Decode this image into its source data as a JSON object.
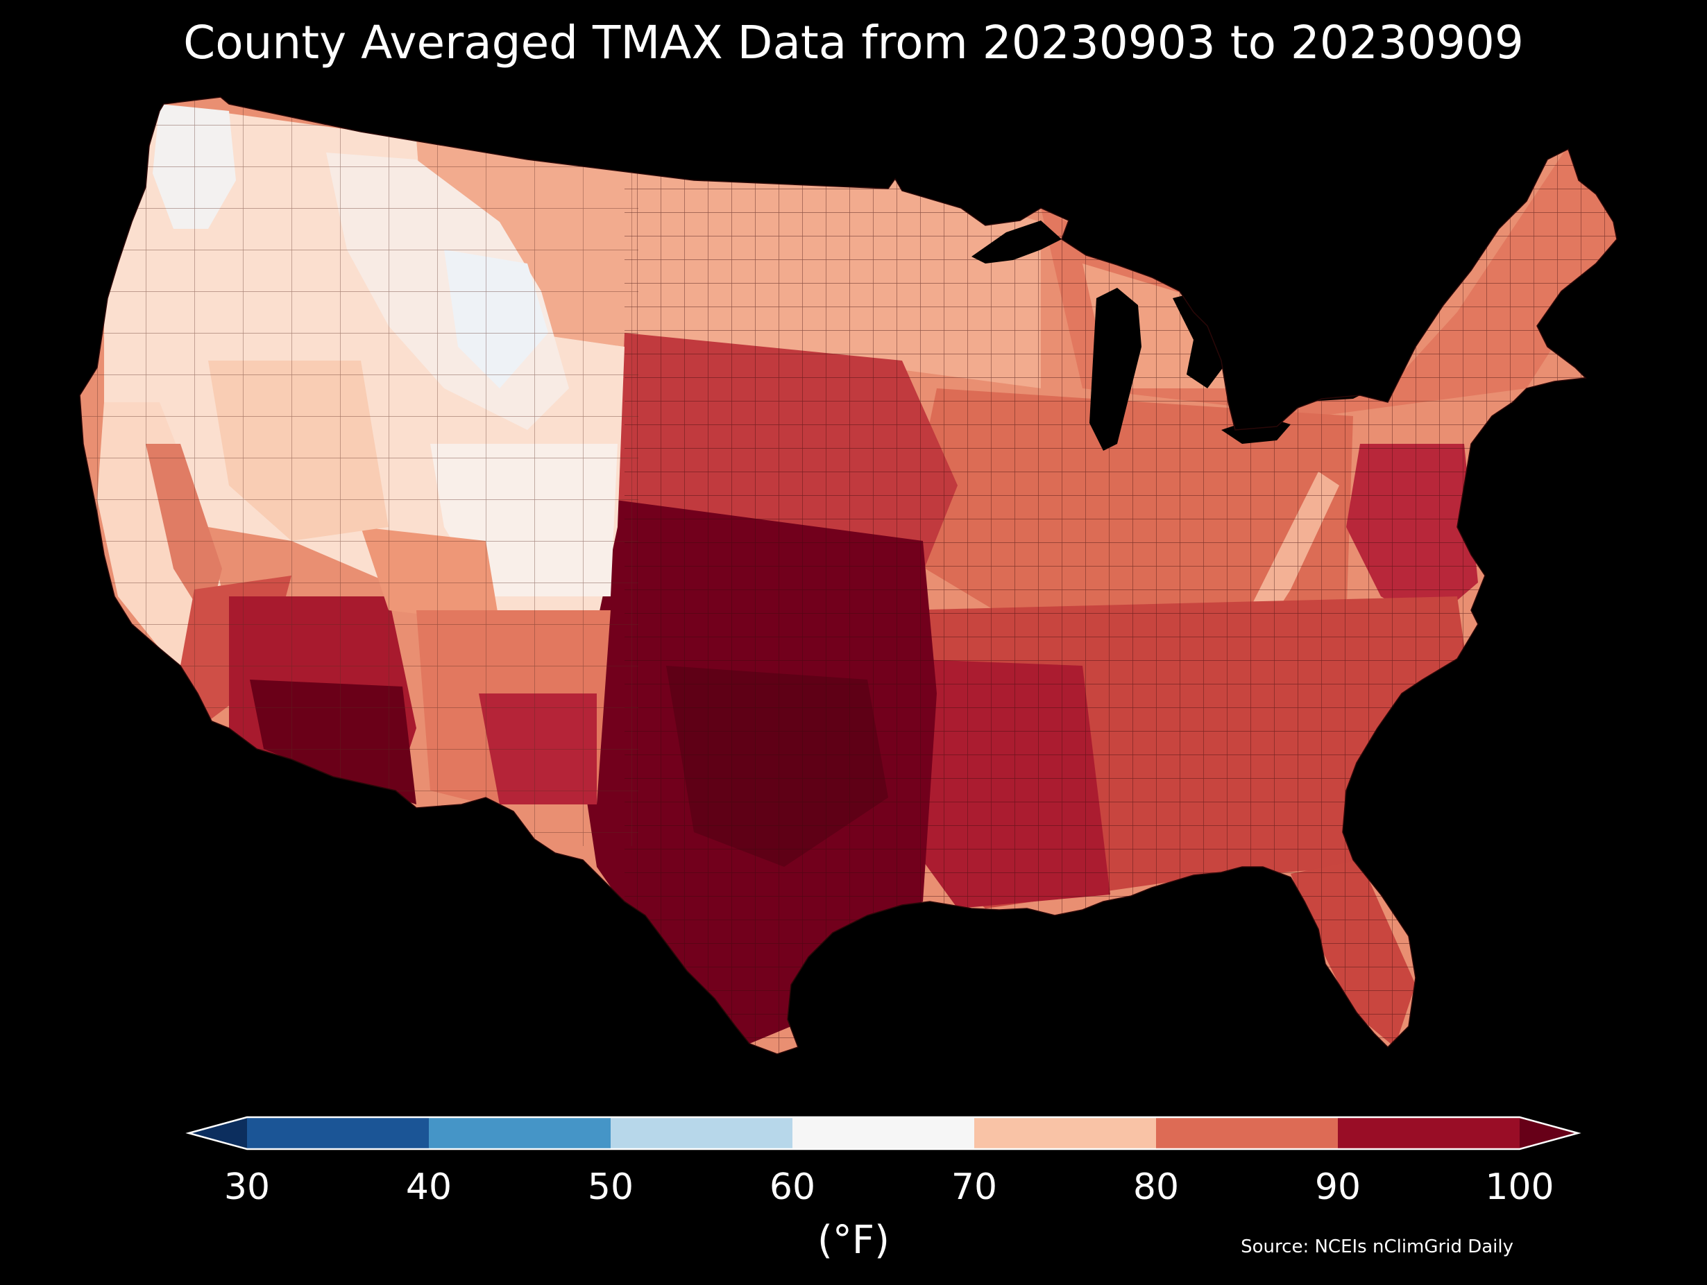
{
  "title": "County Averaged TMAX Data from 20230903 to 20230909",
  "colorbar": {
    "label": "(°F)",
    "ticks": [
      "30",
      "40",
      "50",
      "60",
      "70",
      "80",
      "90",
      "100"
    ],
    "bins": [
      {
        "range": [
          30,
          40
        ],
        "color": "#1b5596"
      },
      {
        "range": [
          40,
          50
        ],
        "color": "#4595c7"
      },
      {
        "range": [
          50,
          60
        ],
        "color": "#b7d7ea"
      },
      {
        "range": [
          60,
          70
        ],
        "color": "#f6f6f6"
      },
      {
        "range": [
          70,
          80
        ],
        "color": "#f9c3a6"
      },
      {
        "range": [
          80,
          90
        ],
        "color": "#dd6b55"
      },
      {
        "range": [
          90,
          100
        ],
        "color": "#990d26"
      }
    ],
    "under_color": "#0c2e5e",
    "over_color": "#670018"
  },
  "source": "Source: NCEIs nClimGrid Daily",
  "map": {
    "region": "Contiguous United States",
    "unit": "°F",
    "regional_tmax": [
      {
        "region": "Pacific Northwest coast / Cascades",
        "tmax": 66,
        "color": "#f3f1f0"
      },
      {
        "region": "Northern Rockies (Idaho / Montana mountains)",
        "tmax": 68,
        "color": "#f8ebe4"
      },
      {
        "region": "Wyoming high country",
        "tmax": 62,
        "color": "#eef2f6"
      },
      {
        "region": "Great Basin / Nevada",
        "tmax": 73,
        "color": "#fbdfcf"
      },
      {
        "region": "Colorado Front Range / Rockies",
        "tmax": 70,
        "color": "#f9efe9"
      },
      {
        "region": "Northern Plains / Dakotas",
        "tmax": 78,
        "color": "#f2ab8e"
      },
      {
        "region": "Upper Midwest / Great Lakes",
        "tmax": 79,
        "color": "#f0a182"
      },
      {
        "region": "Northeast / New England",
        "tmax": 82,
        "color": "#e2785f"
      },
      {
        "region": "Mid-Atlantic coast",
        "tmax": 90,
        "color": "#b8273a"
      },
      {
        "region": "Appalachian ridge",
        "tmax": 77,
        "color": "#f3b195"
      },
      {
        "region": "Ohio Valley",
        "tmax": 84,
        "color": "#dc6c55"
      },
      {
        "region": "Central Plains (Kansas / Nebraska)",
        "tmax": 90,
        "color": "#bf2f3a"
      },
      {
        "region": "Texas / Oklahoma",
        "tmax": 99,
        "color": "#72001c"
      },
      {
        "region": "Lower Mississippi Valley",
        "tmax": 93,
        "color": "#ab1c30"
      },
      {
        "region": "Southeast",
        "tmax": 88,
        "color": "#c8453f"
      },
      {
        "region": "Florida",
        "tmax": 89,
        "color": "#c9463f"
      },
      {
        "region": "Desert Southwest (Arizona)",
        "tmax": 100,
        "color": "#6a0018"
      },
      {
        "region": "Southern California",
        "tmax": 88,
        "color": "#cf4f47"
      },
      {
        "region": "Central California valley",
        "tmax": 84,
        "color": "#e07c64"
      },
      {
        "region": "California coast",
        "tmax": 72,
        "color": "#fbd7c3"
      },
      {
        "region": "New Mexico",
        "tmax": 85,
        "color": "#e2785f"
      }
    ]
  }
}
